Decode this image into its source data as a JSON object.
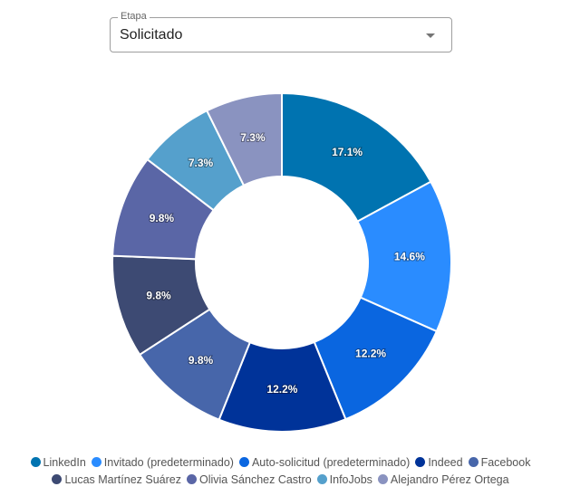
{
  "filter": {
    "label": "Etapa",
    "value": "Solicitado"
  },
  "chart_data": {
    "type": "pie",
    "subtype": "donut",
    "title": "",
    "categories": [
      "LinkedIn",
      "Invitado (predeterminado)",
      "Auto-solicitud (predeterminado)",
      "Indeed",
      "Facebook",
      "Lucas Martínez Suárez",
      "Olivia Sánchez Castro",
      "InfoJobs",
      "Alejandro Pérez Ortega"
    ],
    "values": [
      17.1,
      14.6,
      12.2,
      12.2,
      9.8,
      9.8,
      9.8,
      7.3,
      7.3
    ],
    "labels": [
      "17.1%",
      "14.6%",
      "12.2%",
      "12.2%",
      "9.8%",
      "9.8%",
      "9.8%",
      "7.3%",
      "7.3%"
    ],
    "colors": [
      "#0073b0",
      "#2a8cff",
      "#0a66e0",
      "#003399",
      "#4766aa",
      "#3d4a73",
      "#5a66a6",
      "#55a0cc",
      "#8a93c0"
    ],
    "legend_position": "bottom"
  },
  "legend": {
    "rows": [
      [
        0,
        1,
        2,
        3,
        4
      ],
      [
        5,
        6,
        7,
        8
      ]
    ]
  }
}
